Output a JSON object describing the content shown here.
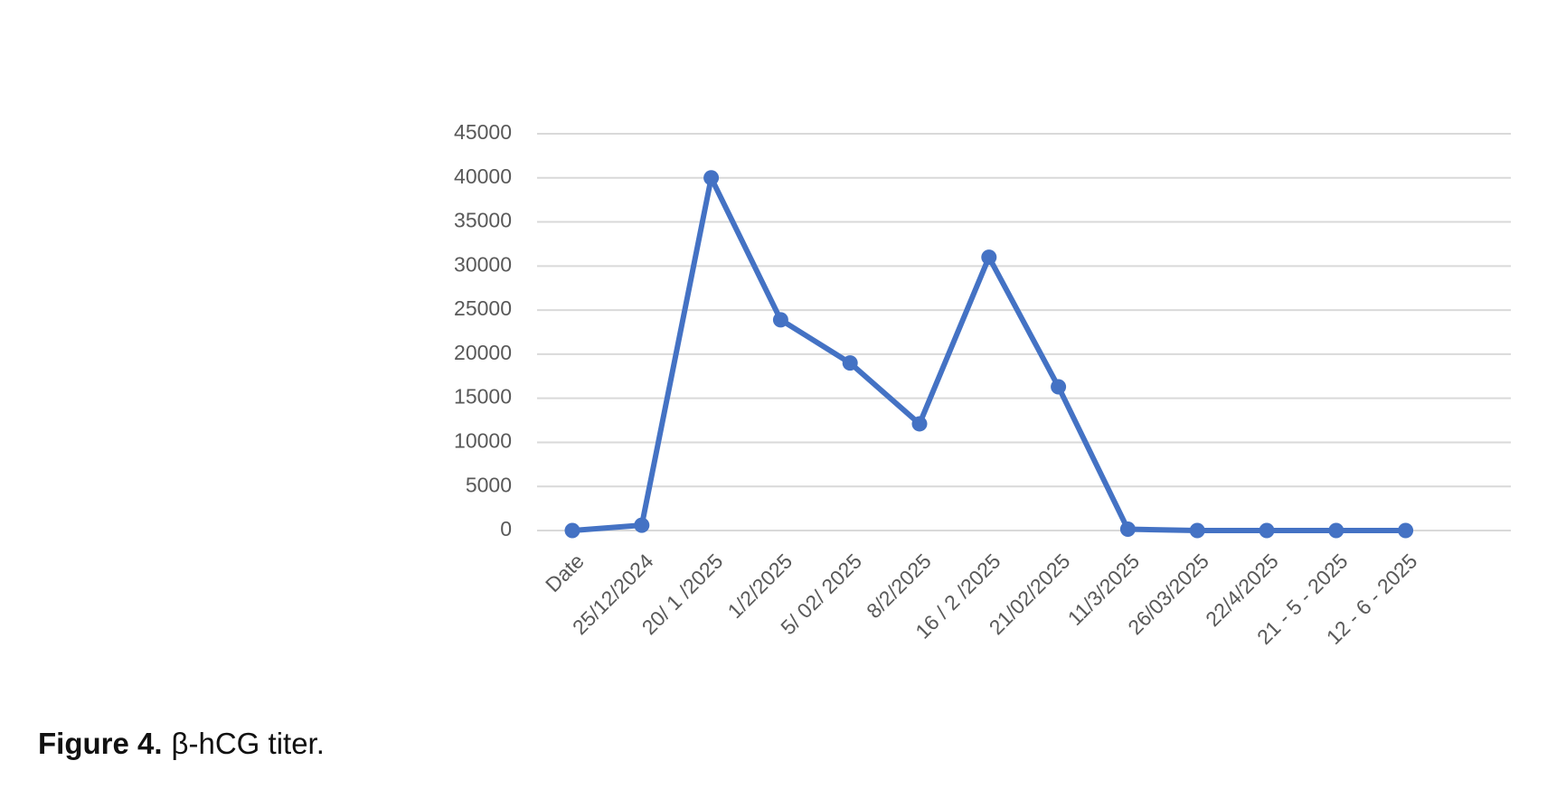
{
  "chart_data": {
    "type": "line",
    "categories": [
      "Date",
      "25/12/2024",
      "20/ 1 /2025",
      "1/2/2025",
      "5/ 02/ 2025",
      "8/2/2025",
      "16 / 2 /2025",
      "21/02/2025",
      "11/3/2025",
      "26/03/2025",
      "22/4/2025",
      "21 - 5 - 2025",
      "12 - 6 - 2025"
    ],
    "series": [
      {
        "name": "β-hCG",
        "color": "#4472c4",
        "values": [
          0,
          600,
          40000,
          23900,
          19000,
          12100,
          31000,
          16300,
          150,
          0,
          0,
          0,
          0
        ]
      }
    ],
    "ylim": [
      0,
      45000
    ],
    "yticks": [
      0,
      5000,
      10000,
      15000,
      20000,
      25000,
      30000,
      35000,
      40000,
      45000
    ],
    "grid": true
  },
  "caption": {
    "label": "Figure 4.",
    "text": "β-hCG titer."
  }
}
